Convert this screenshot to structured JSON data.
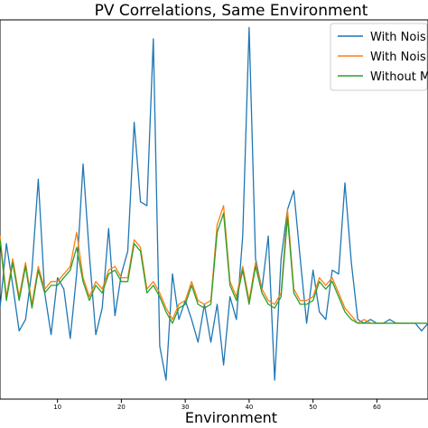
{
  "chart_data": {
    "type": "line",
    "title": "PV Correlations, Same Environment",
    "xlabel": "Environment",
    "ylabel": "",
    "xlim": [
      1,
      68
    ],
    "ylim": [
      0.0,
      1.0
    ],
    "x_ticks": [
      10,
      20,
      30,
      40,
      50,
      60
    ],
    "grid": false,
    "legend_position": "top-right",
    "x": [
      1,
      2,
      3,
      4,
      5,
      6,
      7,
      8,
      9,
      10,
      11,
      12,
      13,
      14,
      15,
      16,
      17,
      18,
      19,
      20,
      21,
      22,
      23,
      24,
      25,
      26,
      27,
      28,
      29,
      30,
      31,
      32,
      33,
      34,
      35,
      36,
      37,
      38,
      39,
      40,
      41,
      42,
      43,
      44,
      45,
      46,
      47,
      48,
      49,
      50,
      51,
      52,
      53,
      54,
      55,
      56,
      57,
      58,
      59,
      60,
      61,
      62,
      63,
      64,
      65,
      66,
      67,
      68
    ],
    "series": [
      {
        "name": "With Nois",
        "color": "#1f77b4",
        "values": [
          0.24,
          0.41,
          0.3,
          0.18,
          0.21,
          0.34,
          0.58,
          0.28,
          0.17,
          0.32,
          0.29,
          0.16,
          0.33,
          0.62,
          0.38,
          0.17,
          0.24,
          0.45,
          0.22,
          0.33,
          0.39,
          0.73,
          0.52,
          0.51,
          0.95,
          0.14,
          0.05,
          0.33,
          0.21,
          0.26,
          0.21,
          0.15,
          0.25,
          0.15,
          0.25,
          0.09,
          0.27,
          0.21,
          0.43,
          0.98,
          0.37,
          0.29,
          0.43,
          0.05,
          0.37,
          0.5,
          0.55,
          0.37,
          0.2,
          0.34,
          0.23,
          0.21,
          0.34,
          0.33,
          0.57,
          0.36,
          0.21,
          0.2,
          0.21,
          0.2,
          0.2,
          0.21,
          0.2,
          0.2,
          0.2,
          0.2,
          0.18,
          0.2
        ]
      },
      {
        "name": "With Nois",
        "color": "#ff7f0e",
        "values": [
          0.43,
          0.27,
          0.37,
          0.27,
          0.36,
          0.25,
          0.35,
          0.29,
          0.31,
          0.31,
          0.33,
          0.35,
          0.44,
          0.32,
          0.27,
          0.31,
          0.29,
          0.34,
          0.35,
          0.32,
          0.32,
          0.42,
          0.4,
          0.29,
          0.31,
          0.28,
          0.24,
          0.21,
          0.25,
          0.26,
          0.31,
          0.26,
          0.25,
          0.26,
          0.46,
          0.51,
          0.31,
          0.27,
          0.35,
          0.26,
          0.36,
          0.29,
          0.26,
          0.25,
          0.28,
          0.5,
          0.29,
          0.26,
          0.26,
          0.27,
          0.32,
          0.3,
          0.32,
          0.28,
          0.24,
          0.22,
          0.2,
          0.21,
          0.2,
          0.2,
          0.2,
          0.2,
          0.2,
          0.2,
          0.2,
          0.2,
          0.2,
          0.2
        ]
      },
      {
        "name": "Without M",
        "color": "#2ca02c",
        "values": [
          0.42,
          0.26,
          0.36,
          0.26,
          0.35,
          0.24,
          0.34,
          0.28,
          0.3,
          0.3,
          0.32,
          0.34,
          0.4,
          0.31,
          0.26,
          0.3,
          0.28,
          0.33,
          0.34,
          0.31,
          0.31,
          0.41,
          0.39,
          0.28,
          0.3,
          0.27,
          0.23,
          0.2,
          0.24,
          0.25,
          0.3,
          0.25,
          0.24,
          0.25,
          0.44,
          0.49,
          0.3,
          0.26,
          0.34,
          0.25,
          0.35,
          0.28,
          0.25,
          0.24,
          0.27,
          0.48,
          0.28,
          0.25,
          0.25,
          0.26,
          0.31,
          0.29,
          0.31,
          0.27,
          0.23,
          0.21,
          0.2,
          0.2,
          0.2,
          0.2,
          0.2,
          0.2,
          0.2,
          0.2,
          0.2,
          0.2,
          0.2,
          0.2
        ]
      }
    ]
  }
}
